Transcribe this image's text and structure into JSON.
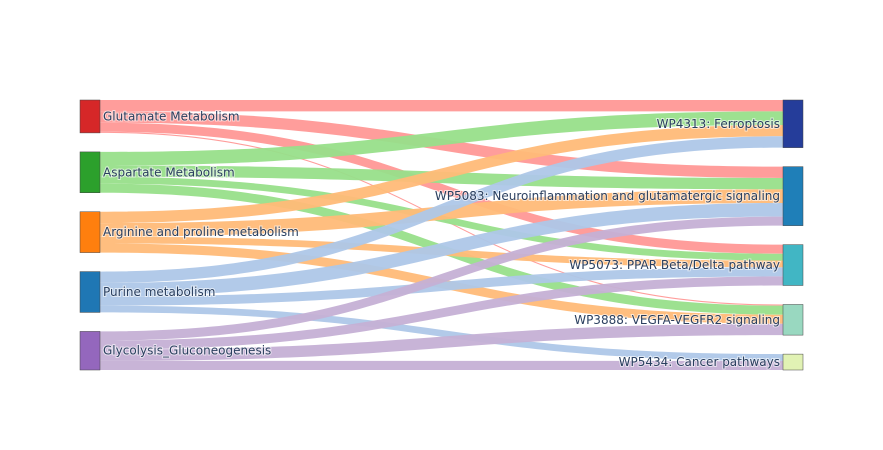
{
  "chart_data": {
    "type": "sankey",
    "nodes": [
      {
        "id": "glu",
        "label": "Glutamate Metabolism",
        "color": "#d62728",
        "side": "left"
      },
      {
        "id": "asp",
        "label": "Aspartate Metabolism",
        "color": "#2ca02c",
        "side": "left"
      },
      {
        "id": "arg",
        "label": "Arginine and proline metabolism",
        "color": "#ff7f0e",
        "side": "left"
      },
      {
        "id": "pur",
        "label": "Purine metabolism",
        "color": "#1f77b4",
        "side": "left"
      },
      {
        "id": "gly",
        "label": "Glycolysis_Gluconeogenesis",
        "color": "#9467bd",
        "side": "left"
      },
      {
        "id": "fer",
        "label": "WP4313: Ferroptosis",
        "color": "#253d9a",
        "side": "right"
      },
      {
        "id": "neu",
        "label": "WP5083: Neuroinflammation and glutamatergic signaling",
        "color": "#1f7fb8",
        "side": "right"
      },
      {
        "id": "ppar",
        "label": "WP5073: PPAR Beta/Delta pathway",
        "color": "#41b6c4",
        "side": "right"
      },
      {
        "id": "vegf",
        "label": "WP3888: VEGFA-VEGFR2 signaling",
        "color": "#99d8c0",
        "side": "right"
      },
      {
        "id": "can",
        "label": "WP5434: Cancer pathways",
        "color": "#e1f2b4",
        "side": "right"
      }
    ],
    "links": [
      {
        "source": "glu",
        "target": "fer",
        "value": 10,
        "color": "#ff9896"
      },
      {
        "source": "glu",
        "target": "neu",
        "value": 10,
        "color": "#ff9896"
      },
      {
        "source": "glu",
        "target": "ppar",
        "value": 8,
        "color": "#ff9896"
      },
      {
        "source": "glu",
        "target": "vegf",
        "value": 1,
        "color": "#ff9896"
      },
      {
        "source": "asp",
        "target": "fer",
        "value": 12,
        "color": "#98df8a"
      },
      {
        "source": "asp",
        "target": "neu",
        "value": 10,
        "color": "#98df8a"
      },
      {
        "source": "asp",
        "target": "ppar",
        "value": 6,
        "color": "#98df8a"
      },
      {
        "source": "asp",
        "target": "vegf",
        "value": 8,
        "color": "#98df8a"
      },
      {
        "source": "arg",
        "target": "fer",
        "value": 10,
        "color": "#ffbb78"
      },
      {
        "source": "arg",
        "target": "neu",
        "value": 12,
        "color": "#ffbb78"
      },
      {
        "source": "arg",
        "target": "ppar",
        "value": 6,
        "color": "#ffbb78"
      },
      {
        "source": "arg",
        "target": "vegf",
        "value": 8,
        "color": "#ffbb78"
      },
      {
        "source": "pur",
        "target": "fer",
        "value": 10,
        "color": "#aec7e8"
      },
      {
        "source": "pur",
        "target": "neu",
        "value": 12,
        "color": "#aec7e8"
      },
      {
        "source": "pur",
        "target": "ppar",
        "value": 8,
        "color": "#aec7e8"
      },
      {
        "source": "pur",
        "target": "can",
        "value": 6,
        "color": "#aec7e8"
      },
      {
        "source": "gly",
        "target": "neu",
        "value": 8,
        "color": "#c5b0d5"
      },
      {
        "source": "gly",
        "target": "ppar",
        "value": 8,
        "color": "#c5b0d5"
      },
      {
        "source": "gly",
        "target": "vegf",
        "value": 10,
        "color": "#c5b0d5"
      },
      {
        "source": "gly",
        "target": "can",
        "value": 8,
        "color": "#c5b0d5"
      }
    ]
  }
}
